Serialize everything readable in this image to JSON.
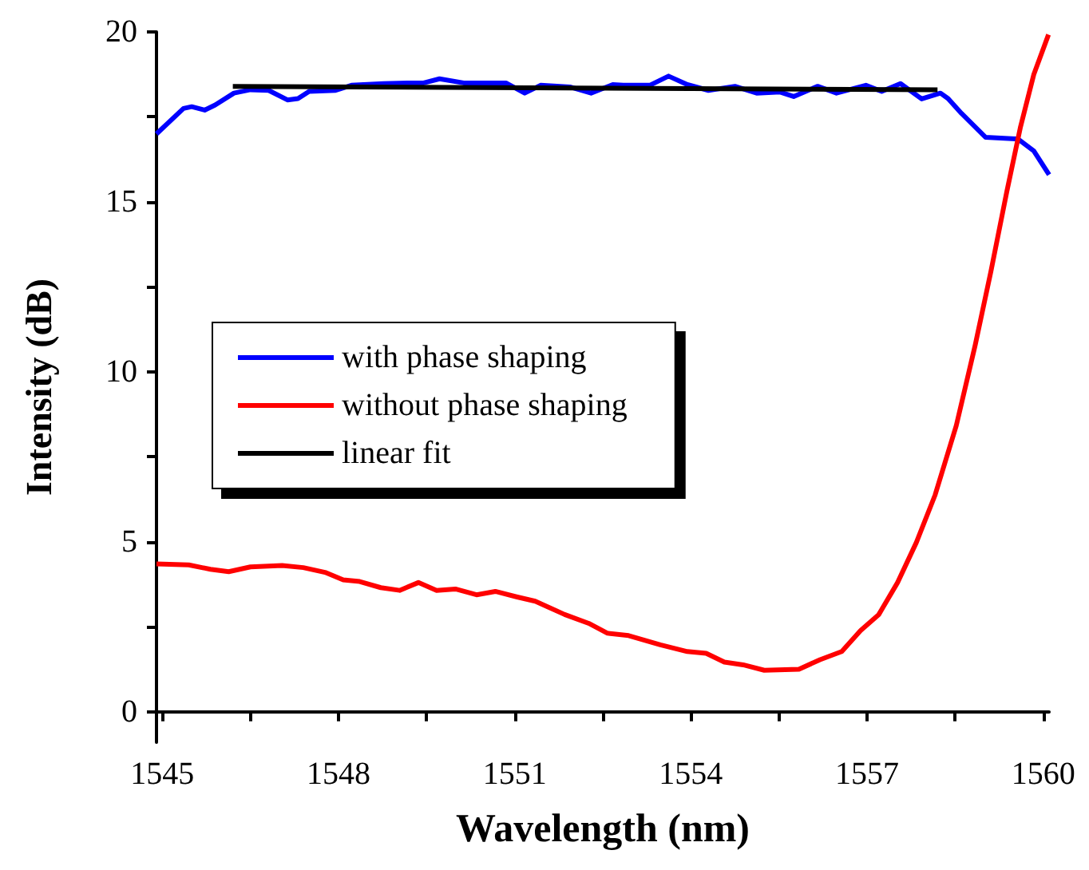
{
  "chart_data": {
    "type": "line",
    "xlabel": "Wavelength (nm)",
    "ylabel": "Intensity (dB)",
    "xlim": [
      1544.9,
      1560.1
    ],
    "ylim": [
      -0.9,
      20
    ],
    "xticks": [
      1545,
      {
        "value": 1546.5,
        "label": null
      },
      1548,
      {
        "value": 1549.5,
        "label": null
      },
      1551,
      {
        "value": 1552.5,
        "label": null
      },
      1554,
      {
        "value": 1555.5,
        "label": null
      },
      1557,
      {
        "value": 1558.5,
        "label": null
      },
      1560
    ],
    "yticks": [
      0,
      {
        "value": 2.5,
        "label": null
      },
      5,
      {
        "value": 7.5,
        "label": null
      },
      10,
      {
        "value": 12.5,
        "label": null
      },
      15,
      {
        "value": 17.5,
        "label": null
      },
      20
    ],
    "grid": false,
    "legend": "left",
    "marker": "none",
    "line_style": "solid",
    "series": [
      {
        "name": "with phase shaping",
        "color": "#0000ff",
        "x": [
          1544.9,
          1545.36,
          1545.5,
          1545.72,
          1545.9,
          1546.22,
          1546.5,
          1546.81,
          1547.13,
          1547.31,
          1547.5,
          1547.95,
          1548.22,
          1548.77,
          1549.22,
          1549.45,
          1549.72,
          1550.13,
          1550.85,
          1551.17,
          1551.44,
          1551.94,
          1552.3,
          1552.67,
          1552.85,
          1553.3,
          1553.62,
          1553.94,
          1554.3,
          1554.75,
          1555.12,
          1555.52,
          1555.75,
          1556.16,
          1556.48,
          1556.98,
          1557.25,
          1557.57,
          1557.93,
          1558.25,
          1558.38,
          1558.61,
          1559.02,
          1559.57,
          1559.84,
          1560.1
        ],
        "values": [
          17.0,
          17.75,
          17.8,
          17.7,
          17.85,
          18.2,
          18.3,
          18.28,
          18.0,
          18.04,
          18.25,
          18.28,
          18.43,
          18.48,
          18.5,
          18.5,
          18.62,
          18.5,
          18.5,
          18.2,
          18.43,
          18.38,
          18.2,
          18.45,
          18.43,
          18.43,
          18.7,
          18.45,
          18.28,
          18.4,
          18.2,
          18.23,
          18.1,
          18.4,
          18.2,
          18.43,
          18.25,
          18.48,
          18.03,
          18.2,
          18.04,
          17.6,
          16.9,
          16.85,
          16.5,
          15.8
        ]
      },
      {
        "name": "without phase shaping",
        "color": "#ff0000",
        "x": [
          1544.9,
          1545.45,
          1545.82,
          1546.13,
          1546.5,
          1547.04,
          1547.4,
          1547.77,
          1548.08,
          1548.36,
          1548.72,
          1549.04,
          1549.36,
          1549.67,
          1549.99,
          1550.35,
          1550.67,
          1551.03,
          1551.35,
          1551.85,
          1552.26,
          1552.58,
          1552.94,
          1553.48,
          1553.94,
          1554.26,
          1554.57,
          1554.89,
          1555.25,
          1555.84,
          1556.2,
          1556.57,
          1556.89,
          1557.2,
          1557.52,
          1557.84,
          1558.16,
          1558.52,
          1558.84,
          1559.11,
          1559.38,
          1559.61,
          1559.84,
          1560.09
        ],
        "values": [
          4.35,
          4.32,
          4.19,
          4.12,
          4.26,
          4.3,
          4.24,
          4.1,
          3.88,
          3.83,
          3.65,
          3.57,
          3.8,
          3.57,
          3.61,
          3.44,
          3.54,
          3.38,
          3.25,
          2.86,
          2.6,
          2.31,
          2.24,
          1.97,
          1.77,
          1.72,
          1.46,
          1.38,
          1.22,
          1.25,
          1.53,
          1.77,
          2.39,
          2.86,
          3.8,
          4.98,
          6.38,
          8.42,
          10.77,
          12.96,
          15.3,
          17.18,
          18.75,
          19.92
        ]
      },
      {
        "name": "linear fit",
        "color": "#000000",
        "x": [
          1546.2,
          1558.2
        ],
        "values": [
          18.4,
          18.3
        ]
      }
    ]
  }
}
